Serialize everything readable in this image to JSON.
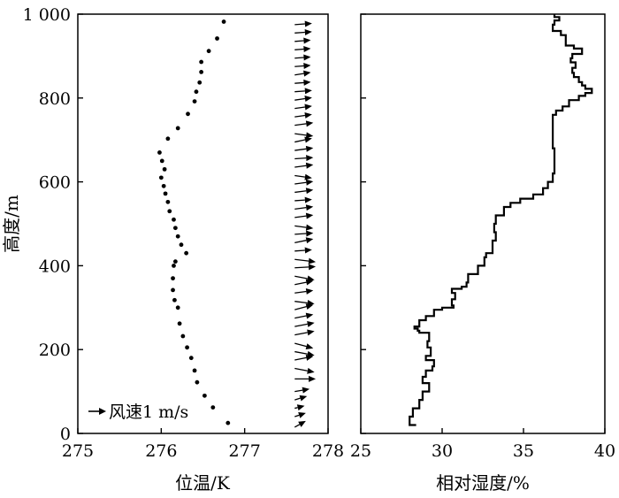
{
  "chart_data": [
    {
      "type": "scatter",
      "xlabel": "位温/K",
      "ylabel": "高度/m",
      "xlim": [
        275,
        278
      ],
      "ylim": [
        0,
        1000
      ],
      "xticks": [
        "275",
        "276",
        "277",
        "278"
      ],
      "yticks": [
        "0",
        "200",
        "400",
        "600",
        "800",
        "1 000"
      ],
      "legend": {
        "label": "风速1 m/s",
        "placement": "bottom-left"
      },
      "series": [
        {
          "values": [
            [
              276.8,
              25
            ],
            [
              276.62,
              62
            ],
            [
              276.52,
              90
            ],
            [
              276.43,
              122
            ],
            [
              276.4,
              150
            ],
            [
              276.36,
              180
            ],
            [
              276.31,
              205
            ],
            [
              276.26,
              232
            ],
            [
              276.22,
              262
            ],
            [
              276.2,
              300
            ],
            [
              276.16,
              318
            ],
            [
              276.14,
              342
            ],
            [
              276.14,
              370
            ],
            [
              276.15,
              400
            ],
            [
              276.17,
              410
            ],
            [
              276.3,
              430
            ],
            [
              276.24,
              450
            ],
            [
              276.2,
              470
            ],
            [
              276.17,
              490
            ],
            [
              276.15,
              510
            ],
            [
              276.1,
              530
            ],
            [
              276.08,
              552
            ],
            [
              276.05,
              572
            ],
            [
              276.03,
              590
            ],
            [
              276.0,
              610
            ],
            [
              276.04,
              630
            ],
            [
              276.01,
              650
            ],
            [
              275.98,
              670
            ],
            [
              276.08,
              703
            ],
            [
              276.2,
              728
            ],
            [
              276.32,
              762
            ],
            [
              276.4,
              792
            ],
            [
              276.42,
              815
            ],
            [
              276.46,
              837
            ],
            [
              276.48,
              862
            ],
            [
              276.48,
              886
            ],
            [
              276.57,
              912
            ],
            [
              276.67,
              942
            ],
            [
              276.75,
              982
            ]
          ]
        }
      ],
      "wind_vectors": {
        "x_position": 277.6,
        "scale_note": "1 m/s",
        "heights": [
          15,
          40,
          60,
          80,
          100,
          130,
          155,
          175,
          195,
          215,
          235,
          255,
          275,
          295,
          315,
          335,
          355,
          375,
          395,
          415,
          435,
          455,
          475,
          495,
          515,
          535,
          555,
          575,
          595,
          615,
          635,
          655,
          675,
          695,
          715,
          735,
          755,
          775,
          795,
          815,
          835,
          855,
          875,
          895,
          915,
          935,
          955,
          975
        ],
        "u": [
          0.9,
          0.9,
          0.8,
          1.0,
          1.2,
          1.7,
          1.6,
          1.5,
          1.6,
          1.5,
          1.6,
          1.6,
          1.5,
          1.5,
          1.6,
          1.5,
          1.5,
          1.6,
          1.7,
          1.7,
          1.4,
          1.5,
          1.5,
          1.5,
          1.5,
          1.5,
          1.4,
          1.5,
          1.5,
          1.4,
          1.5,
          1.5,
          1.5,
          1.4,
          1.5,
          1.5,
          1.4,
          1.4,
          1.4,
          1.4,
          1.3,
          1.3,
          1.3,
          1.3,
          1.3,
          1.3,
          1.4,
          1.4
        ],
        "v": [
          0.5,
          0.3,
          0.2,
          0.3,
          0.2,
          0.0,
          -0.3,
          0.3,
          -0.3,
          -0.4,
          0.3,
          0.3,
          0.3,
          0.4,
          -0.2,
          0.2,
          0.3,
          -0.3,
          0.1,
          -0.2,
          0.1,
          0.3,
          0.1,
          -0.2,
          0.2,
          0.2,
          0.1,
          0.2,
          0.2,
          -0.2,
          0.2,
          0.1,
          0.2,
          0.3,
          -0.2,
          0.2,
          0.2,
          0.2,
          0.2,
          0.1,
          0.1,
          0.2,
          0.1,
          0.1,
          0.1,
          0.1,
          0.1,
          0.1
        ]
      }
    },
    {
      "type": "line",
      "xlabel": "相对湿度/%",
      "ylabel": "",
      "xlim": [
        25,
        40
      ],
      "ylim": [
        0,
        1000
      ],
      "xticks": [
        "25",
        "30",
        "35",
        "40"
      ],
      "yticks": [
        "0",
        "200",
        "400",
        "600",
        "800",
        "1 000"
      ],
      "series": [
        {
          "values": [
            [
              28.4,
              20
            ],
            [
              28.0,
              30
            ],
            [
              28.0,
              40
            ],
            [
              28.2,
              60
            ],
            [
              28.6,
              80
            ],
            [
              28.8,
              100
            ],
            [
              29.2,
              120
            ],
            [
              28.8,
              135
            ],
            [
              29.0,
              150
            ],
            [
              29.4,
              160
            ],
            [
              29.5,
              175
            ],
            [
              29.0,
              185
            ],
            [
              29.3,
              205
            ],
            [
              29.1,
              220
            ],
            [
              29.2,
              240
            ],
            [
              28.6,
              245
            ],
            [
              28.5,
              250
            ],
            [
              28.3,
              255
            ],
            [
              28.6,
              270
            ],
            [
              29.0,
              280
            ],
            [
              29.5,
              295
            ],
            [
              30.0,
              300
            ],
            [
              30.7,
              305
            ],
            [
              30.6,
              320
            ],
            [
              30.8,
              335
            ],
            [
              30.6,
              345
            ],
            [
              31.2,
              350
            ],
            [
              31.5,
              360
            ],
            [
              31.6,
              380
            ],
            [
              32.2,
              400
            ],
            [
              32.6,
              420
            ],
            [
              32.7,
              430
            ],
            [
              33.1,
              460
            ],
            [
              33.3,
              480
            ],
            [
              33.2,
              500
            ],
            [
              33.3,
              520
            ],
            [
              33.8,
              540
            ],
            [
              34.2,
              550
            ],
            [
              34.8,
              560
            ],
            [
              35.6,
              570
            ],
            [
              36.2,
              585
            ],
            [
              36.5,
              600
            ],
            [
              36.8,
              620
            ],
            [
              36.9,
              640
            ],
            [
              36.9,
              660
            ],
            [
              36.9,
              680
            ],
            [
              36.8,
              700
            ],
            [
              36.8,
              720
            ],
            [
              36.8,
              740
            ],
            [
              36.8,
              760
            ],
            [
              37.0,
              770
            ],
            [
              37.4,
              780
            ],
            [
              37.8,
              795
            ],
            [
              38.4,
              805
            ],
            [
              38.8,
              812
            ],
            [
              39.2,
              822
            ],
            [
              38.8,
              830
            ],
            [
              38.6,
              838
            ],
            [
              38.4,
              850
            ],
            [
              38.1,
              860
            ],
            [
              38.0,
              872
            ],
            [
              38.2,
              885
            ],
            [
              37.9,
              895
            ],
            [
              38.0,
              905
            ],
            [
              38.6,
              918
            ],
            [
              38.1,
              925
            ],
            [
              37.6,
              935
            ],
            [
              37.6,
              950
            ],
            [
              37.3,
              960
            ],
            [
              36.8,
              965
            ],
            [
              36.8,
              975
            ],
            [
              36.9,
              985
            ],
            [
              37.2,
              993
            ],
            [
              36.9,
              1000
            ]
          ]
        }
      ]
    }
  ]
}
